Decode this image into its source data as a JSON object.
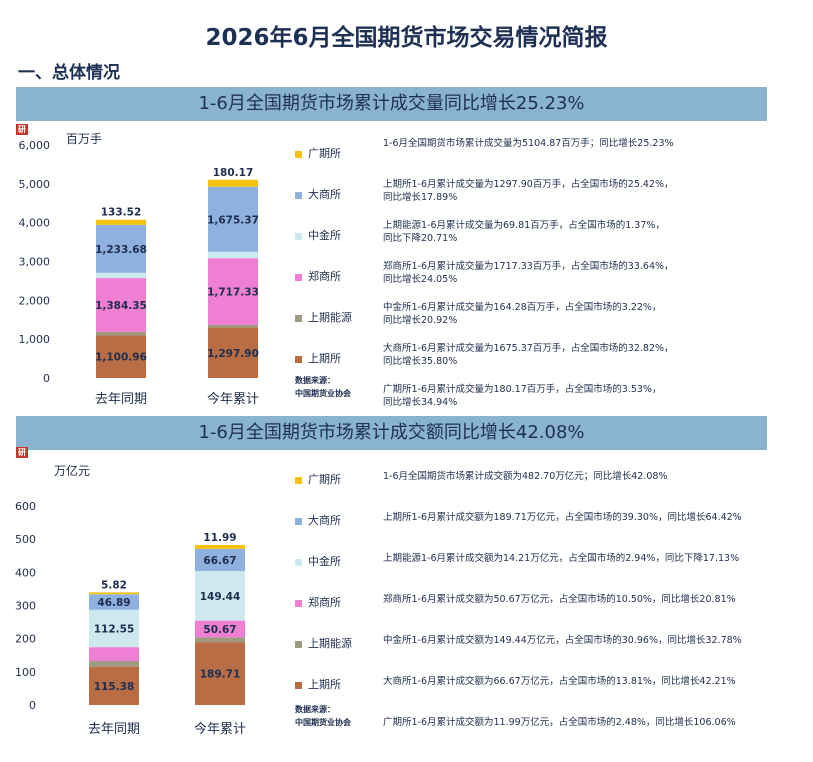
{
  "report": {
    "title": "2026年6月全国期货市场交易情况简报",
    "section": "一、总体情况",
    "source": [
      "数据来源：",
      "中国期货业协会"
    ],
    "logo_colors": {
      "badge": "#c8332b"
    }
  },
  "chart_data": [
    {
      "type": "bar",
      "stacked": true,
      "title": "1-6月全国期货市场累计成交量同比增长25.23%",
      "ylabel": "百万手",
      "ylim": [
        0,
        6000
      ],
      "yticks": [
        "0",
        "1,000",
        "2,000",
        "3,000",
        "4,000",
        "5,000",
        "6,000"
      ],
      "categories": [
        "去年同期",
        "今年累计"
      ],
      "series": [
        {
          "name": "上期所",
          "color": "#b86d45",
          "values": [
            1100.96,
            1297.9
          ],
          "labels": [
            "1,100.96",
            "1,297.90"
          ]
        },
        {
          "name": "上期能源",
          "color": "#9e9a82",
          "values": [
            88.04,
            69.81
          ],
          "labels": [
            "88.04",
            "69.81"
          ]
        },
        {
          "name": "郑商所",
          "color": "#ee7fd3",
          "values": [
            1384.35,
            1717.33
          ],
          "labels": [
            "1,384.35",
            "1,717.33"
          ]
        },
        {
          "name": "中金所",
          "color": "#cde9ee",
          "values": [
            135.86,
            164.28
          ],
          "labels": [
            "135.86",
            "164.28"
          ]
        },
        {
          "name": "大商所",
          "color": "#8fb1df",
          "values": [
            1233.68,
            1675.37
          ],
          "labels": [
            "1,233.68",
            "1,675.37"
          ]
        },
        {
          "name": "广期所",
          "color": "#f5c211",
          "values": [
            133.52,
            180.17
          ],
          "labels": [
            "133.52",
            "180.17"
          ]
        }
      ],
      "notes": [
        [
          "1-6月全国期货市场累计成交量为5104.87百万手；同比增长25.23%"
        ],
        [
          "上期所1-6月累计成交量为1297.90百万手，占全国市场的25.42%，",
          "同比增长17.89%"
        ],
        [
          "上期能源1-6月累计成交量为69.81百万手，占全国市场的1.37%，",
          "同比下降20.71%"
        ],
        [
          "郑商所1-6月累计成交量为1717.33百万手，占全国市场的33.64%，",
          "同比增长24.05%"
        ],
        [
          "中金所1-6月累计成交量为164.28百万手，占全国市场的3.22%，",
          "同比增长20.92%"
        ],
        [
          "大商所1-6月累计成交量为1675.37百万手，占全国市场的32.82%，",
          "同比增长35.80%"
        ],
        [
          "广期所1-6月累计成交量为180.17百万手，占全国市场的3.53%，",
          "同比增长34.94%"
        ]
      ]
    },
    {
      "type": "bar",
      "stacked": true,
      "title": "1-6月全国期货市场累计成交额同比增长42.08%",
      "ylabel": "万亿元",
      "ylim": [
        0,
        600
      ],
      "yticks": [
        "0",
        "100",
        "200",
        "300",
        "400",
        "500",
        "600"
      ],
      "categories": [
        "去年同期",
        "今年累计"
      ],
      "series": [
        {
          "name": "上期所",
          "color": "#b86d45",
          "values": [
            115.38,
            189.71
          ],
          "labels": [
            "115.38",
            "189.71"
          ]
        },
        {
          "name": "上期能源",
          "color": "#9e9a82",
          "values": [
            17.15,
            14.21
          ],
          "labels": [
            "17.15",
            "14.21"
          ]
        },
        {
          "name": "郑商所",
          "color": "#ee7fd3",
          "values": [
            41.94,
            50.67
          ],
          "labels": [
            "41.94",
            "50.67"
          ]
        },
        {
          "name": "中金所",
          "color": "#cde9ee",
          "values": [
            112.55,
            149.44
          ],
          "labels": [
            "112.55",
            "149.44"
          ]
        },
        {
          "name": "大商所",
          "color": "#8fb1df",
          "values": [
            46.89,
            66.67
          ],
          "labels": [
            "46.89",
            "66.67"
          ]
        },
        {
          "name": "广期所",
          "color": "#f5c211",
          "values": [
            5.82,
            11.99
          ],
          "labels": [
            "5.82",
            "11.99"
          ]
        }
      ],
      "notes": [
        [
          "1-6月全国期货市场累计成交额为482.70万亿元；同比增长42.08%"
        ],
        [
          "上期所1-6月累计成交额为189.71万亿元，占全国市场的39.30%，同比增长64.42%"
        ],
        [
          "上期能源1-6月累计成交额为14.21万亿元，占全国市场的2.94%，同比下降17.13%"
        ],
        [
          "郑商所1-6月累计成交额为50.67万亿元，占全国市场的10.50%，同比增长20.81%"
        ],
        [
          "中金所1-6月累计成交额为149.44万亿元，占全国市场的30.96%，同比增长32.78%"
        ],
        [
          "大商所1-6月累计成交额为66.67万亿元，占全国市场的13.81%，同比增长42.21%"
        ],
        [
          "广期所1-6月累计成交额为11.99万亿元，占全国市场的2.48%，同比增长106.06%"
        ]
      ]
    }
  ]
}
